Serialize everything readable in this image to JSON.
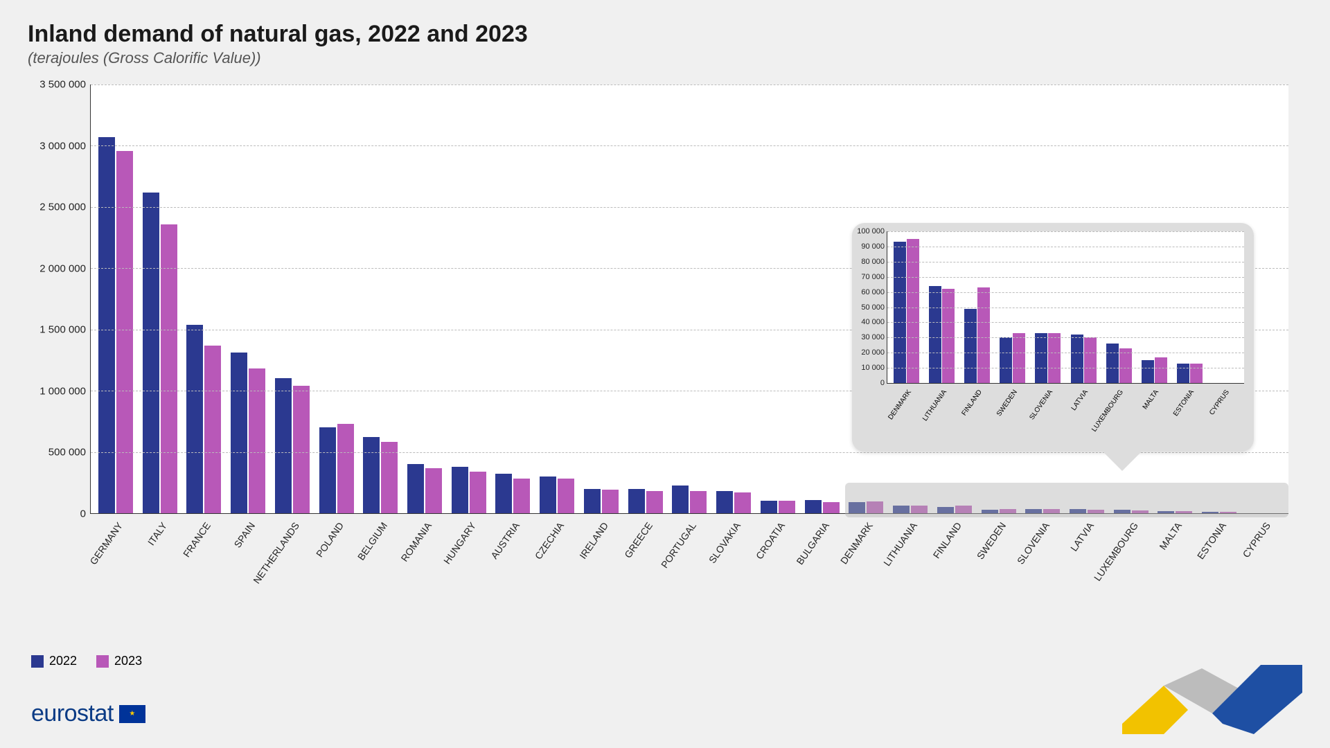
{
  "title": "Inland demand of natural gas, 2022 and 2023",
  "subtitle": "(terajoules (Gross Calorific Value))",
  "legend": {
    "2022": "2022",
    "2023": "2023"
  },
  "colors": {
    "series2022": "#2b3990",
    "series2023": "#b858b8",
    "grid": "#bbbbbb",
    "background": "#ffffff",
    "page_bg": "#f0f0f0",
    "inset_bg": "#dddddd",
    "swoosh_yellow": "#f2c200",
    "swoosh_grey": "#bcbcbc",
    "swoosh_blue": "#1e4fa3"
  },
  "main_chart": {
    "type": "bar",
    "ymax": 3500000,
    "ytick_step": 500000,
    "yticks": [
      "0",
      "500 000",
      "1 000 000",
      "1 500 000",
      "2 000 000",
      "2 500 000",
      "3 000 000",
      "3 500 000"
    ],
    "categories": [
      "GERMANY",
      "ITALY",
      "FRANCE",
      "SPAIN",
      "NETHERLANDS",
      "POLAND",
      "BELGIUM",
      "ROMANIA",
      "HUNGARY",
      "AUSTRIA",
      "CZECHIA",
      "IRELAND",
      "GREECE",
      "PORTUGAL",
      "SLOVAKIA",
      "CROATIA",
      "BULGARIA",
      "DENMARK",
      "LITHUANIA",
      "FINLAND",
      "SWEDEN",
      "SLOVENIA",
      "LATVIA",
      "LUXEMBOURG",
      "MALTA",
      "ESTONIA",
      "CYPRUS"
    ],
    "values2022": [
      3070000,
      2620000,
      1540000,
      1310000,
      1100000,
      700000,
      620000,
      400000,
      380000,
      325000,
      300000,
      200000,
      200000,
      225000,
      180000,
      100000,
      110000,
      93000,
      64000,
      49000,
      30000,
      33000,
      32000,
      26000,
      15000,
      13000,
      0
    ],
    "values2023": [
      2960000,
      2360000,
      1370000,
      1180000,
      1040000,
      730000,
      580000,
      370000,
      340000,
      280000,
      280000,
      190000,
      180000,
      180000,
      170000,
      100000,
      90000,
      95000,
      62000,
      63000,
      33000,
      33000,
      30000,
      23000,
      17000,
      13000,
      0
    ],
    "highlight_start_index": 17,
    "highlight_end_index": 26
  },
  "inset_chart": {
    "type": "bar",
    "ymax": 100000,
    "ytick_step": 10000,
    "yticks": [
      "0",
      "10 000",
      "20 000",
      "30 000",
      "40 000",
      "50 000",
      "60 000",
      "70 000",
      "80 000",
      "90 000",
      "100 000"
    ],
    "categories": [
      "DENMARK",
      "LITHUANIA",
      "FINLAND",
      "SWEDEN",
      "SLOVENIA",
      "LATVIA",
      "LUXEMBOURG",
      "MALTA",
      "ESTONIA",
      "CYPRUS"
    ],
    "values2022": [
      93000,
      64000,
      49000,
      30000,
      33000,
      32000,
      26000,
      15000,
      13000,
      0
    ],
    "values2023": [
      95000,
      62000,
      63000,
      33000,
      33000,
      30000,
      23000,
      17000,
      13000,
      0
    ]
  },
  "logo_text": "eurostat"
}
